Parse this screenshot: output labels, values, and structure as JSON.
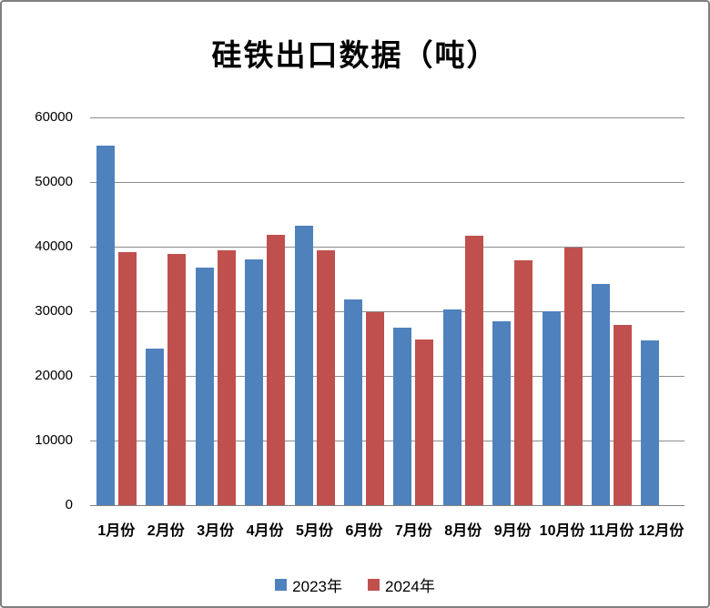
{
  "chart_data": {
    "type": "bar",
    "title": "硅铁出口数据（吨）",
    "categories": [
      "1月份",
      "2月份",
      "3月份",
      "4月份",
      "5月份",
      "6月份",
      "7月份",
      "8月份",
      "9月份",
      "10月份",
      "11月份",
      "12月份"
    ],
    "series": [
      {
        "name": "2023年",
        "color": "#4F81BD",
        "values": [
          55700,
          24200,
          36700,
          38100,
          43300,
          31800,
          27500,
          30300,
          28500,
          30000,
          34200,
          25500
        ]
      },
      {
        "name": "2024年",
        "color": "#C0504D",
        "values": [
          39100,
          38900,
          39400,
          41800,
          39400,
          29900,
          25700,
          41700,
          37900,
          39900,
          27900,
          null
        ]
      }
    ],
    "xlabel": "",
    "ylabel": "",
    "ylim": [
      0,
      60000
    ],
    "yticks": [
      0,
      10000,
      20000,
      30000,
      40000,
      50000,
      60000
    ],
    "grid": true,
    "legend_position": "bottom"
  },
  "colors": {
    "background": "#FFFFFF",
    "frame_border": "#7F7F7F",
    "gridline": "#8C8C8C",
    "axis_line": "#808080",
    "text": "#000000",
    "series_2023": "#4F81BD",
    "series_2024": "#C0504D"
  }
}
